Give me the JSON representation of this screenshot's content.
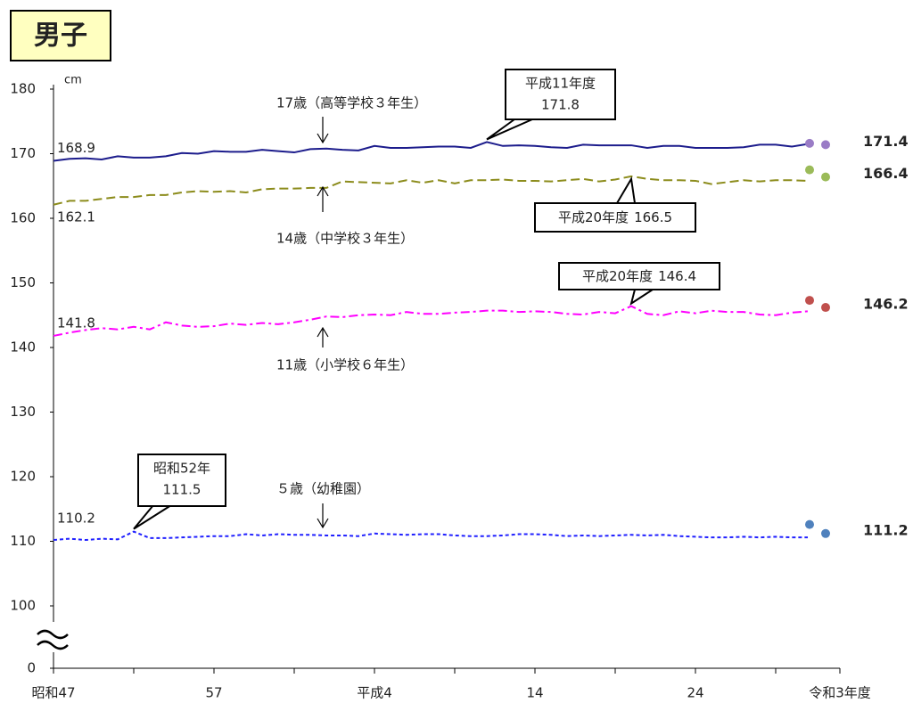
{
  "chart_data": {
    "type": "line",
    "title": "男子",
    "y_unit": "cm",
    "categories": [
      "昭和47",
      null,
      null,
      null,
      null,
      null,
      null,
      null,
      null,
      null,
      "57",
      null,
      null,
      null,
      null,
      null,
      null,
      null,
      null,
      null,
      "平成4",
      null,
      null,
      null,
      null,
      null,
      null,
      null,
      null,
      null,
      "14",
      null,
      null,
      null,
      null,
      null,
      null,
      null,
      null,
      null,
      "24",
      null,
      null,
      null,
      null,
      null,
      null,
      null,
      null,
      "令和3年度"
    ],
    "ylim": [
      0,
      180
    ],
    "yticks": [
      0,
      100,
      110,
      120,
      130,
      140,
      150,
      160,
      170,
      180
    ],
    "axis_break": true,
    "grid": false,
    "series": [
      {
        "name": "17歳（高等学校３年生）",
        "color": "#1c1c8c",
        "dash": "solid",
        "peak_label": "平成11年度",
        "marker_color": "#9a7cc6",
        "values": [
          168.9,
          169.2,
          169.3,
          169.1,
          169.6,
          169.4,
          169.4,
          169.6,
          170.1,
          170.0,
          170.4,
          170.3,
          170.3,
          170.6,
          170.4,
          170.2,
          170.7,
          170.8,
          170.6,
          170.5,
          171.2,
          170.9,
          170.9,
          171.0,
          171.1,
          171.1,
          170.9,
          171.8,
          171.2,
          171.3,
          171.2,
          171.0,
          170.9,
          171.4,
          171.3,
          171.3,
          171.3,
          170.9,
          171.2,
          171.2,
          170.9,
          170.9,
          170.9,
          171.0,
          171.4,
          171.4,
          171.1,
          171.5,
          null,
          null
        ],
        "marker_values": [
          null,
          null,
          null,
          null,
          null,
          null,
          null,
          null,
          null,
          null,
          null,
          null,
          null,
          null,
          null,
          null,
          null,
          null,
          null,
          null,
          null,
          null,
          null,
          null,
          null,
          null,
          null,
          null,
          null,
          null,
          null,
          null,
          null,
          null,
          null,
          null,
          null,
          null,
          null,
          null,
          null,
          null,
          null,
          null,
          null,
          null,
          null,
          null,
          171.6,
          171.4
        ]
      },
      {
        "name": "14歳（中学校３年生）",
        "color": "#8c8c1c",
        "dash": "dashed",
        "peak_label": "平成20年度",
        "marker_color": "#9bbb59",
        "values": [
          162.1,
          162.7,
          162.7,
          163.0,
          163.3,
          163.3,
          163.6,
          163.6,
          164.0,
          164.2,
          164.1,
          164.2,
          164.0,
          164.5,
          164.6,
          164.6,
          164.7,
          164.7,
          165.7,
          165.6,
          165.5,
          165.4,
          165.9,
          165.5,
          165.9,
          165.4,
          165.9,
          165.9,
          166.0,
          165.8,
          165.8,
          165.7,
          165.9,
          166.1,
          165.7,
          166.0,
          166.5,
          166.1,
          165.9,
          165.9,
          165.8,
          165.3,
          165.6,
          165.9,
          165.7,
          165.9,
          165.9,
          165.8,
          null,
          null
        ],
        "marker_values": [
          null,
          null,
          null,
          null,
          null,
          null,
          null,
          null,
          null,
          null,
          null,
          null,
          null,
          null,
          null,
          null,
          null,
          null,
          null,
          null,
          null,
          null,
          null,
          null,
          null,
          null,
          null,
          null,
          null,
          null,
          null,
          null,
          null,
          null,
          null,
          null,
          null,
          null,
          null,
          null,
          null,
          null,
          null,
          null,
          null,
          null,
          null,
          null,
          167.5,
          166.4
        ]
      },
      {
        "name": "11歳（小学校６年生）",
        "color": "#ff00ff",
        "dash": "dashdot",
        "peak_label": "平成20年度",
        "marker_color": "#c0504d",
        "values": [
          141.8,
          142.3,
          142.7,
          143.0,
          142.8,
          143.2,
          142.8,
          143.9,
          143.4,
          143.2,
          143.3,
          143.7,
          143.5,
          143.8,
          143.6,
          143.9,
          144.3,
          144.8,
          144.7,
          145.0,
          145.1,
          145.0,
          145.5,
          145.2,
          145.2,
          145.4,
          145.5,
          145.7,
          145.7,
          145.5,
          145.6,
          145.5,
          145.2,
          145.1,
          145.5,
          145.3,
          146.4,
          145.2,
          145.0,
          145.6,
          145.3,
          145.7,
          145.5,
          145.5,
          145.1,
          145.0,
          145.4,
          145.6,
          null,
          null
        ],
        "marker_values": [
          null,
          null,
          null,
          null,
          null,
          null,
          null,
          null,
          null,
          null,
          null,
          null,
          null,
          null,
          null,
          null,
          null,
          null,
          null,
          null,
          null,
          null,
          null,
          null,
          null,
          null,
          null,
          null,
          null,
          null,
          null,
          null,
          null,
          null,
          null,
          null,
          null,
          null,
          null,
          null,
          null,
          null,
          null,
          null,
          null,
          null,
          null,
          null,
          147.3,
          146.2
        ]
      },
      {
        "name": "５歳（幼稚園）",
        "color": "#2020ff",
        "dash": "dotted",
        "peak_label": "昭和52年",
        "marker_color": "#4f81bd",
        "values": [
          110.2,
          110.4,
          110.2,
          110.4,
          110.3,
          111.5,
          110.5,
          110.5,
          110.6,
          110.7,
          110.8,
          110.8,
          111.1,
          110.9,
          111.1,
          111.0,
          111.0,
          110.9,
          110.9,
          110.8,
          111.2,
          111.1,
          111.0,
          111.1,
          111.1,
          110.9,
          110.8,
          110.8,
          110.9,
          111.1,
          111.1,
          111.0,
          110.8,
          110.9,
          110.8,
          110.9,
          111.0,
          110.9,
          111.0,
          110.8,
          110.7,
          110.6,
          110.6,
          110.7,
          110.6,
          110.7,
          110.6,
          110.6,
          null,
          null
        ],
        "marker_values": [
          null,
          null,
          null,
          null,
          null,
          null,
          null,
          null,
          null,
          null,
          null,
          null,
          null,
          null,
          null,
          null,
          null,
          null,
          null,
          null,
          null,
          null,
          null,
          null,
          null,
          null,
          null,
          null,
          null,
          null,
          null,
          null,
          null,
          null,
          null,
          null,
          null,
          null,
          null,
          null,
          null,
          null,
          null,
          null,
          null,
          null,
          null,
          null,
          112.6,
          111.2
        ]
      }
    ]
  }
}
